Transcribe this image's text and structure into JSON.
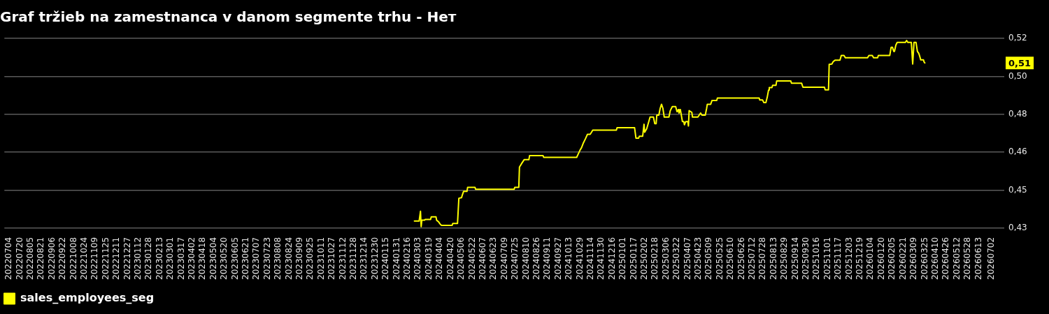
{
  "chart_data": {
    "type": "line",
    "title": "Graf tržieb na zamestnanca v danom segmente trhu - Нет",
    "x": [
      "2024-02-26",
      "2024-03-04",
      "2024-03-06",
      "2024-03-07",
      "2024-03-08",
      "2024-03-12",
      "2024-03-13",
      "2024-03-21",
      "2024-03-22",
      "2024-03-29",
      "2024-03-30",
      "2024-04-02",
      "2024-04-04",
      "2024-04-06",
      "2024-04-22",
      "2024-04-23",
      "2024-04-30",
      "2024-05-02",
      "2024-05-06",
      "2024-05-07",
      "2024-05-09",
      "2024-05-14",
      "2024-05-15",
      "2024-05-26",
      "2024-05-27",
      "2024-07-23",
      "2024-07-24",
      "2024-07-30",
      "2024-07-31",
      "2024-08-03",
      "2024-08-07",
      "2024-08-14",
      "2024-08-15",
      "2024-09-04",
      "2024-09-05",
      "2024-10-24",
      "2024-10-25",
      "2024-10-29",
      "2024-10-31",
      "2024-11-03",
      "2024-11-06",
      "2024-11-09",
      "2024-11-13",
      "2024-11-15",
      "2024-11-17",
      "2024-12-22",
      "2024-12-23",
      "2025-01-18",
      "2025-01-20",
      "2025-01-24",
      "2025-01-25",
      "2025-01-30",
      "2025-02-01",
      "2025-02-02",
      "2025-02-05",
      "2025-02-10",
      "2025-02-15",
      "2025-02-17",
      "2025-02-19",
      "2025-02-20",
      "2025-02-23",
      "2025-02-25",
      "2025-02-27",
      "2025-03-01",
      "2025-03-03",
      "2025-03-10",
      "2025-03-12",
      "2025-03-15",
      "2025-03-20",
      "2025-03-22",
      "2025-03-24",
      "2025-03-25",
      "2025-03-27",
      "2025-03-30",
      "2025-04-01",
      "2025-04-02",
      "2025-04-04",
      "2025-04-07",
      "2025-04-08",
      "2025-04-09",
      "2025-04-13",
      "2025-04-14",
      "2025-04-22",
      "2025-04-26",
      "2025-04-28",
      "2025-05-03",
      "2025-05-05",
      "2025-05-06",
      "2025-05-11",
      "2025-05-13",
      "2025-05-20",
      "2025-05-21",
      "2025-07-22",
      "2025-07-23",
      "2025-07-27",
      "2025-07-29",
      "2025-08-01",
      "2025-08-03",
      "2025-08-05",
      "2025-08-06",
      "2025-08-10",
      "2025-08-11",
      "2025-08-16",
      "2025-08-17",
      "2025-09-07",
      "2025-09-08",
      "2025-09-23",
      "2025-09-25",
      "2025-10-27",
      "2025-10-28",
      "2025-11-02",
      "2025-11-03",
      "2025-11-07",
      "2025-11-09",
      "2025-11-12",
      "2025-11-19",
      "2025-11-21",
      "2025-11-25",
      "2025-11-27",
      "2025-12-30",
      "2026-01-01",
      "2026-01-06",
      "2026-01-08",
      "2026-01-14",
      "2026-01-15",
      "2026-02-01",
      "2026-02-03",
      "2026-02-05",
      "2026-02-07",
      "2026-02-08",
      "2026-02-10",
      "2026-02-12",
      "2026-02-24",
      "2026-02-26",
      "2026-02-28",
      "2026-03-05",
      "2026-03-07",
      "2026-03-09",
      "2026-03-12",
      "2026-03-14",
      "2026-03-16",
      "2026-03-17",
      "2026-03-19",
      "2026-03-23",
      "2026-03-24",
      "2026-03-25"
    ],
    "series": [
      {
        "name": "sales_employees_seg",
        "color": "#ffff00",
        "values": [
          0.4318,
          0.4318,
          0.4364,
          0.4292,
          0.4322,
          0.4322,
          0.4326,
          0.4326,
          0.4338,
          0.4338,
          0.4322,
          0.4314,
          0.4305,
          0.4298,
          0.4298,
          0.4307,
          0.4307,
          0.4425,
          0.4428,
          0.4439,
          0.4457,
          0.4457,
          0.4476,
          0.4476,
          0.4467,
          0.4467,
          0.4476,
          0.4476,
          0.4571,
          0.4587,
          0.4606,
          0.4606,
          0.4625,
          0.4625,
          0.4617,
          0.4617,
          0.4624,
          0.4651,
          0.4661,
          0.4685,
          0.4704,
          0.4725,
          0.4725,
          0.4735,
          0.4745,
          0.4745,
          0.4756,
          0.4756,
          0.4707,
          0.4707,
          0.4716,
          0.4716,
          0.4772,
          0.4735,
          0.4751,
          0.4806,
          0.4806,
          0.4775,
          0.4775,
          0.4815,
          0.4815,
          0.4847,
          0.4866,
          0.4847,
          0.4806,
          0.4806,
          0.4836,
          0.4855,
          0.4855,
          0.4831,
          0.4841,
          0.4825,
          0.4841,
          0.4785,
          0.4785,
          0.477,
          0.4785,
          0.4785,
          0.4764,
          0.4836,
          0.4828,
          0.4806,
          0.4806,
          0.4825,
          0.4815,
          0.4815,
          0.4847,
          0.4866,
          0.4866,
          0.4884,
          0.4884,
          0.4895,
          0.4895,
          0.4886,
          0.4886,
          0.4874,
          0.4874,
          0.4899,
          0.4933,
          0.4944,
          0.4944,
          0.4955,
          0.4955,
          0.4975,
          0.4975,
          0.4965,
          0.4965,
          0.4946,
          0.4946,
          0.4934,
          0.4934,
          0.5053,
          0.5055,
          0.5066,
          0.5073,
          0.5073,
          0.5095,
          0.5095,
          0.5084,
          0.5084,
          0.5095,
          0.5095,
          0.5084,
          0.5084,
          0.5095,
          0.5095,
          0.5133,
          0.5133,
          0.5114,
          0.5114,
          0.5143,
          0.5156,
          0.5156,
          0.5165,
          0.5156,
          0.5156,
          0.5055,
          0.5156,
          0.5156,
          0.5114,
          0.5105,
          0.5096,
          0.5074,
          0.5074,
          0.5064,
          0.506
        ]
      }
    ],
    "xlim": [
      "2022-06-27",
      "2026-07-21"
    ],
    "xticks": [
      {
        "value": "2022-07-04",
        "label": "20220704"
      },
      {
        "value": "2022-07-20",
        "label": "20220720"
      },
      {
        "value": "2022-08-05",
        "label": "20220805"
      },
      {
        "value": "2022-08-21",
        "label": "20220821"
      },
      {
        "value": "2022-09-06",
        "label": "20220906"
      },
      {
        "value": "2022-09-22",
        "label": "20220922"
      },
      {
        "value": "2022-10-08",
        "label": "20221008"
      },
      {
        "value": "2022-10-24",
        "label": "20221024"
      },
      {
        "value": "2022-11-09",
        "label": "20221109"
      },
      {
        "value": "2022-11-25",
        "label": "20221125"
      },
      {
        "value": "2022-12-11",
        "label": "20221211"
      },
      {
        "value": "2022-12-27",
        "label": "20221227"
      },
      {
        "value": "2023-01-12",
        "label": "20230112"
      },
      {
        "value": "2023-01-28",
        "label": "20230128"
      },
      {
        "value": "2023-02-13",
        "label": "20230213"
      },
      {
        "value": "2023-03-01",
        "label": "20230301"
      },
      {
        "value": "2023-03-17",
        "label": "20230317"
      },
      {
        "value": "2023-04-02",
        "label": "20230402"
      },
      {
        "value": "2023-04-18",
        "label": "20230418"
      },
      {
        "value": "2023-05-04",
        "label": "20230504"
      },
      {
        "value": "2023-05-20",
        "label": "20230520"
      },
      {
        "value": "2023-06-05",
        "label": "20230605"
      },
      {
        "value": "2023-06-21",
        "label": "20230621"
      },
      {
        "value": "2023-07-07",
        "label": "20230707"
      },
      {
        "value": "2023-07-23",
        "label": "20230723"
      },
      {
        "value": "2023-08-08",
        "label": "20230808"
      },
      {
        "value": "2023-08-24",
        "label": "20230824"
      },
      {
        "value": "2023-09-09",
        "label": "20230909"
      },
      {
        "value": "2023-09-25",
        "label": "20230925"
      },
      {
        "value": "2023-10-11",
        "label": "20231011"
      },
      {
        "value": "2023-10-27",
        "label": "20231027"
      },
      {
        "value": "2023-11-12",
        "label": "20231112"
      },
      {
        "value": "2023-11-28",
        "label": "20231128"
      },
      {
        "value": "2023-12-14",
        "label": "20231214"
      },
      {
        "value": "2023-12-30",
        "label": "20231230"
      },
      {
        "value": "2024-01-15",
        "label": "20240115"
      },
      {
        "value": "2024-01-31",
        "label": "20240131"
      },
      {
        "value": "2024-02-16",
        "label": "20240216"
      },
      {
        "value": "2024-03-03",
        "label": "20240303"
      },
      {
        "value": "2024-03-19",
        "label": "20240319"
      },
      {
        "value": "2024-04-04",
        "label": "20240404"
      },
      {
        "value": "2024-04-20",
        "label": "20240420"
      },
      {
        "value": "2024-05-06",
        "label": "20240506"
      },
      {
        "value": "2024-05-22",
        "label": "20240522"
      },
      {
        "value": "2024-06-07",
        "label": "20240607"
      },
      {
        "value": "2024-06-23",
        "label": "20240623"
      },
      {
        "value": "2024-07-09",
        "label": "20240709"
      },
      {
        "value": "2024-07-25",
        "label": "20240725"
      },
      {
        "value": "2024-08-10",
        "label": "20240810"
      },
      {
        "value": "2024-08-26",
        "label": "20240826"
      },
      {
        "value": "2024-09-11",
        "label": "20240911"
      },
      {
        "value": "2024-09-27",
        "label": "20240927"
      },
      {
        "value": "2024-10-13",
        "label": "20241013"
      },
      {
        "value": "2024-10-29",
        "label": "20241029"
      },
      {
        "value": "2024-11-14",
        "label": "20241114"
      },
      {
        "value": "2024-11-30",
        "label": "20241130"
      },
      {
        "value": "2024-12-16",
        "label": "20241216"
      },
      {
        "value": "2025-01-01",
        "label": "20250101"
      },
      {
        "value": "2025-01-17",
        "label": "20250117"
      },
      {
        "value": "2025-02-02",
        "label": "20250202"
      },
      {
        "value": "2025-02-18",
        "label": "20250218"
      },
      {
        "value": "2025-03-06",
        "label": "20250306"
      },
      {
        "value": "2025-03-22",
        "label": "20250322"
      },
      {
        "value": "2025-04-07",
        "label": "20250407"
      },
      {
        "value": "2025-04-23",
        "label": "20250423"
      },
      {
        "value": "2025-05-09",
        "label": "20250509"
      },
      {
        "value": "2025-05-25",
        "label": "20250525"
      },
      {
        "value": "2025-06-10",
        "label": "20250610"
      },
      {
        "value": "2025-06-26",
        "label": "20250626"
      },
      {
        "value": "2025-07-12",
        "label": "20250712"
      },
      {
        "value": "2025-07-28",
        "label": "20250728"
      },
      {
        "value": "2025-08-13",
        "label": "20250813"
      },
      {
        "value": "2025-08-29",
        "label": "20250829"
      },
      {
        "value": "2025-09-14",
        "label": "20250914"
      },
      {
        "value": "2025-09-30",
        "label": "20250930"
      },
      {
        "value": "2025-10-16",
        "label": "20251016"
      },
      {
        "value": "2025-11-01",
        "label": "20251101"
      },
      {
        "value": "2025-11-17",
        "label": "20251117"
      },
      {
        "value": "2025-12-03",
        "label": "20251203"
      },
      {
        "value": "2025-12-19",
        "label": "20251219"
      },
      {
        "value": "2026-01-04",
        "label": "20260104"
      },
      {
        "value": "2026-01-20",
        "label": "20260120"
      },
      {
        "value": "2026-02-05",
        "label": "20260205"
      },
      {
        "value": "2026-02-21",
        "label": "20260221"
      },
      {
        "value": "2026-03-09",
        "label": "20260309"
      },
      {
        "value": "2026-03-25",
        "label": "20260325"
      },
      {
        "value": "2026-04-10",
        "label": "20260410"
      },
      {
        "value": "2026-04-26",
        "label": "20260426"
      },
      {
        "value": "2026-05-12",
        "label": "20260512"
      },
      {
        "value": "2026-05-28",
        "label": "20260528"
      },
      {
        "value": "2026-06-13",
        "label": "20260613"
      },
      {
        "value": "2026-07-02",
        "label": "20260702"
      }
    ],
    "ylim": [
      0.4285,
      0.5175
    ],
    "yticks": [
      {
        "value": 0.4285,
        "label": "0,43"
      },
      {
        "value": 0.4463,
        "label": "0,45"
      },
      {
        "value": 0.4641,
        "label": "0,46"
      },
      {
        "value": 0.4819,
        "label": "0,48"
      },
      {
        "value": 0.4997,
        "label": "0,50"
      },
      {
        "value": 0.5175,
        "label": "0,52"
      }
    ],
    "grid": "y",
    "legend": "bottom left",
    "marker": "none",
    "line_style": "solid",
    "annotations": [
      {
        "text": "0,51",
        "y": 0.506
      }
    ]
  }
}
